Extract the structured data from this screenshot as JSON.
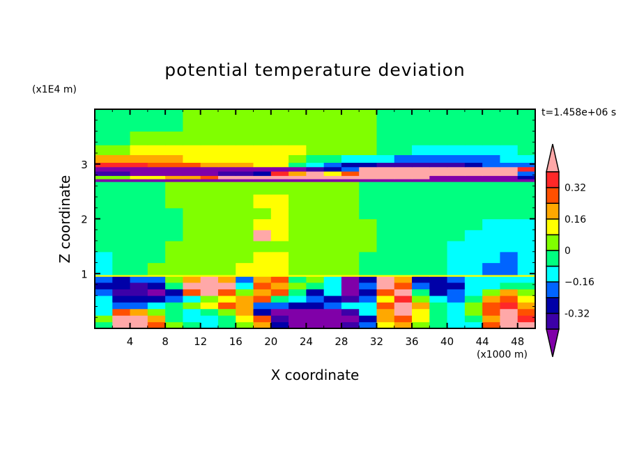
{
  "chart_data": {
    "type": "heatmap",
    "title": "potential temperature deviation",
    "xlabel": "X coordinate",
    "ylabel": "Z coordinate",
    "x_unit_label": "(x1000 m)",
    "z_unit_label": "(x1E4 m)",
    "time_label": "t=1.458e+06 s",
    "xlim": [
      0,
      50
    ],
    "ylim": [
      0,
      4
    ],
    "x_ticks": [
      4,
      8,
      12,
      16,
      20,
      24,
      28,
      32,
      36,
      40,
      44,
      48
    ],
    "x_tick_labels": [
      "4",
      "8",
      "12",
      "16",
      "20",
      "24",
      "28",
      "32",
      "36",
      "40",
      "44",
      "48"
    ],
    "y_ticks": [
      1,
      2,
      3
    ],
    "y_tick_labels": [
      "1",
      "2",
      "3"
    ],
    "colorbar": {
      "levels": [
        -0.4,
        -0.32,
        -0.24,
        -0.16,
        -0.08,
        0,
        0.08,
        0.16,
        0.24,
        0.32,
        0.4
      ],
      "labeled_levels": [
        -0.32,
        -0.16,
        0,
        0.16,
        0.32
      ],
      "labels": [
        "-0.32",
        "−0.16",
        "0",
        "0.16",
        "0.32"
      ],
      "colors": [
        "#8000a8",
        "#3c00a8",
        "#0000a8",
        "#0064ff",
        "#00ffff",
        "#00ff80",
        "#80ff00",
        "#ffff00",
        "#ffa800",
        "#ff5000",
        "#ff2828",
        "#ffa8a8"
      ],
      "extend": "both"
    },
    "grid_note": "cell codes 0-B index colorbar bins from lowest (<-0.40) to highest (>0.40); x cells are 2 km wide from 0 to 50",
    "x_cell_width": 2,
    "rows": [
      {
        "z": [
          0.0,
          0.12
        ],
        "codes": "5BB96545682000137865449BB"
      },
      {
        "z": [
          0.12,
          0.24
        ],
        "codes": "6BB85445791000028975458BA"
      },
      {
        "z": [
          0.24,
          0.36
        ],
        "codes": "49865456820000148B75469B9"
      },
      {
        "z": [
          0.36,
          0.48
        ],
        "codes": "43345679833223449B85469A8"
      },
      {
        "z": [
          0.48,
          0.6
        ],
        "codes": "42223467895432137A6435897"
      },
      {
        "z": [
          0.6,
          0.72
        ],
        "codes": "311029B9689524029B5234686"
      },
      {
        "z": [
          0.72,
          0.84
        ],
        "codes": "22125BBB49865403B93224455"
      },
      {
        "z": [
          0.84,
          0.95
        ],
        "codes": "323368B838956402B82234444"
      },
      {
        "z": [
          0.95,
          0.98
        ],
        "codes": "7777777777777777777777777"
      },
      {
        "z": [
          0.98,
          1.2
        ],
        "codes": "4556666677766665555544334"
      },
      {
        "z": [
          1.2,
          1.4
        ],
        "codes": "4555666667766665555544434"
      },
      {
        "z": [
          1.4,
          1.6
        ],
        "codes": "5555666666666666555544444"
      },
      {
        "z": [
          1.6,
          1.8
        ],
        "codes": "555556666B766666555554444"
      },
      {
        "z": [
          1.8,
          2.0
        ],
        "codes": "5555566667766666555555444"
      },
      {
        "z": [
          2.0,
          2.2
        ],
        "codes": "5555566666766665555555555"
      },
      {
        "z": [
          2.2,
          2.45
        ],
        "codes": "5555666667766665555555555"
      },
      {
        "z": [
          2.45,
          2.68
        ],
        "codes": "5555666666666665555555555"
      },
      {
        "z": [
          2.68,
          2.73
        ],
        "codes": "0000000000000000000000000"
      },
      {
        "z": [
          2.73,
          2.79
        ],
        "codes": "6677889BBBBBBBBBBBB000002"
      },
      {
        "z": [
          2.79,
          2.87
        ],
        "codes": "1100000112A8B79BBBBBBBBB3"
      },
      {
        "z": [
          2.87,
          2.95
        ],
        "codes": "000000000000123BBBBBBBBBA"
      },
      {
        "z": [
          2.95,
          3.03
        ],
        "codes": "AAA9998887754322111112333"
      },
      {
        "z": [
          3.03,
          3.17
        ],
        "codes": "8888877777765544433333344"
      },
      {
        "z": [
          3.17,
          3.35
        ],
        "codes": "6677777777776666554444445"
      },
      {
        "z": [
          3.35,
          3.6
        ],
        "codes": "5566666666666666555555555"
      },
      {
        "z": [
          3.6,
          4.0
        ],
        "codes": "5555566666666666555555555"
      }
    ]
  }
}
